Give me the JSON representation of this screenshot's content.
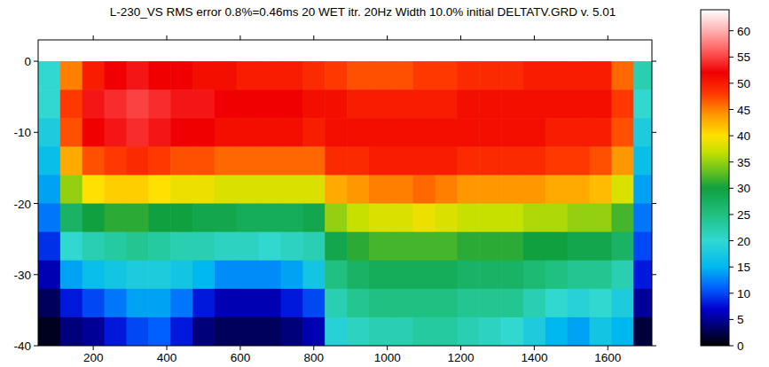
{
  "chart_data": {
    "type": "heatmap",
    "title": "L-230_VS RMS error 0.8%=0.46ms 20 WET itr. 20Hz Width 10.0% initial DELTATV.GRD v. 5.01",
    "x": [
      80,
      140,
      200,
      260,
      320,
      380,
      440,
      500,
      560,
      620,
      680,
      740,
      800,
      860,
      920,
      980,
      1040,
      1100,
      1160,
      1220,
      1280,
      1340,
      1400,
      1460,
      1520,
      1580,
      1640,
      1700
    ],
    "y": [
      -2,
      -6,
      -10,
      -14,
      -18,
      -22,
      -26,
      -30,
      -34,
      -38
    ],
    "values": [
      [
        20,
        45,
        50,
        52,
        53,
        52,
        52,
        51,
        51,
        50,
        50,
        50,
        49,
        48,
        47,
        47,
        47,
        48,
        48,
        49,
        49,
        49,
        50,
        50,
        50,
        50,
        46,
        22
      ],
      [
        20,
        48,
        53,
        54,
        55,
        54,
        53,
        53,
        52,
        52,
        52,
        52,
        51,
        51,
        50,
        50,
        50,
        50,
        50,
        51,
        51,
        51,
        51,
        51,
        51,
        51,
        48,
        20
      ],
      [
        18,
        47,
        52,
        53,
        54,
        53,
        52,
        52,
        51,
        51,
        51,
        51,
        50,
        51,
        51,
        51,
        51,
        51,
        51,
        51,
        51,
        51,
        51,
        50,
        50,
        50,
        47,
        18
      ],
      [
        16,
        43,
        47,
        48,
        49,
        48,
        47,
        47,
        46,
        46,
        46,
        46,
        46,
        49,
        49,
        50,
        50,
        50,
        50,
        49,
        49,
        49,
        49,
        48,
        48,
        47,
        44,
        16
      ],
      [
        14,
        35,
        40,
        41,
        41,
        40,
        39,
        39,
        38,
        38,
        38,
        38,
        38,
        43,
        44,
        45,
        45,
        46,
        45,
        44,
        44,
        44,
        44,
        43,
        43,
        42,
        38,
        14
      ],
      [
        12,
        27,
        30,
        31,
        31,
        30,
        30,
        29,
        29,
        28,
        28,
        28,
        29,
        35,
        37,
        38,
        38,
        39,
        38,
        37,
        37,
        37,
        36,
        36,
        35,
        35,
        32,
        12
      ],
      [
        9,
        20,
        22,
        23,
        24,
        23,
        22,
        22,
        21,
        21,
        20,
        21,
        22,
        29,
        31,
        32,
        32,
        32,
        32,
        31,
        31,
        31,
        30,
        30,
        29,
        29,
        27,
        10
      ],
      [
        6,
        14,
        16,
        17,
        18,
        18,
        17,
        15,
        13,
        13,
        13,
        14,
        17,
        25,
        27,
        28,
        28,
        28,
        28,
        27,
        27,
        27,
        26,
        25,
        24,
        24,
        22,
        8
      ],
      [
        3,
        8,
        10,
        12,
        14,
        14,
        12,
        8,
        6,
        6,
        6,
        8,
        10,
        22,
        24,
        25,
        25,
        25,
        25,
        24,
        24,
        24,
        22,
        20,
        19,
        20,
        18,
        5
      ],
      [
        1,
        4,
        5,
        8,
        10,
        11,
        8,
        4,
        3,
        3,
        3,
        4,
        6,
        19,
        21,
        22,
        22,
        23,
        23,
        22,
        21,
        20,
        18,
        15,
        14,
        17,
        15,
        2
      ]
    ],
    "xlim": [
      50,
      1720
    ],
    "ylim": [
      -40,
      3
    ],
    "xticks": [
      200,
      400,
      600,
      800,
      1000,
      1200,
      1400,
      1600
    ],
    "yticks": [
      0,
      -10,
      -20,
      -30,
      -40
    ],
    "colorbar": {
      "range": [
        0,
        64
      ],
      "ticks": [
        0,
        5,
        10,
        15,
        20,
        25,
        30,
        35,
        40,
        45,
        50,
        55,
        60
      ]
    }
  }
}
